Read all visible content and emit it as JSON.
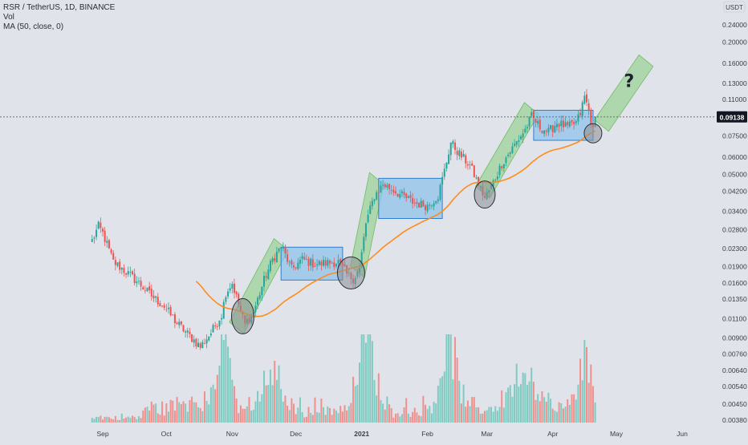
{
  "header": {
    "symbol_line": "RSR / TetherUS, 1D, BINANCE",
    "volume_label": "Vol",
    "ma_label": "MA (50, close, 0)"
  },
  "currency_label": "USDT",
  "question_mark": "?",
  "colors": {
    "up": "#26a69a",
    "down": "#ef5350",
    "vol_up": "#7ecbc1",
    "vol_down": "#f0908d",
    "ma": "#ff8c1a",
    "green_channel": "#9ed39a",
    "blue_box": "#8fc3ea",
    "circle": "#777a80"
  },
  "chart_data": {
    "type": "candlestick",
    "title": "",
    "scale": "log",
    "ylim": [
      0.0036,
      0.33
    ],
    "y_ticks": [
      "0.24000",
      "0.20000",
      "0.16000",
      "0.13000",
      "0.11000",
      "0.09138",
      "0.07500",
      "0.06000",
      "0.05000",
      "0.04200",
      "0.03400",
      "0.02800",
      "0.02300",
      "0.01900",
      "0.01600",
      "0.01350",
      "0.01100",
      "0.00900",
      "0.00760",
      "0.00640",
      "0.00540",
      "0.00450",
      "0.00380"
    ],
    "y_tick_values": [
      0.24,
      0.2,
      0.16,
      0.13,
      0.11,
      0.09138,
      0.075,
      0.06,
      0.05,
      0.042,
      0.034,
      0.028,
      0.023,
      0.019,
      0.016,
      0.0135,
      0.011,
      0.009,
      0.0076,
      0.0064,
      0.0054,
      0.0045,
      0.0038
    ],
    "last_price": 0.09138,
    "x_labels": [
      {
        "label": "Sep",
        "date": "2020-09-01"
      },
      {
        "label": "Oct",
        "date": "2020-10-01"
      },
      {
        "label": "Nov",
        "date": "2020-11-01"
      },
      {
        "label": "Dec",
        "date": "2020-12-01"
      },
      {
        "label": "2021",
        "date": "2021-01-01"
      },
      {
        "label": "Feb",
        "date": "2021-02-01"
      },
      {
        "label": "Mar",
        "date": "2021-03-01"
      },
      {
        "label": "Apr",
        "date": "2021-04-01"
      },
      {
        "label": "May",
        "date": "2021-05-01"
      },
      {
        "label": "Jun",
        "date": "2021-06-01"
      }
    ],
    "price_anchors": [
      [
        "2020-08-27",
        0.025
      ],
      [
        "2020-08-30",
        0.029
      ],
      [
        "2020-09-01",
        0.027
      ],
      [
        "2020-09-03",
        0.024
      ],
      [
        "2020-09-06",
        0.02
      ],
      [
        "2020-09-12",
        0.018
      ],
      [
        "2020-09-18",
        0.016
      ],
      [
        "2020-09-24",
        0.014
      ],
      [
        "2020-09-30",
        0.0125
      ],
      [
        "2020-10-06",
        0.0105
      ],
      [
        "2020-10-12",
        0.0092
      ],
      [
        "2020-10-17",
        0.0082
      ],
      [
        "2020-10-22",
        0.0095
      ],
      [
        "2020-10-27",
        0.0115
      ],
      [
        "2020-10-29",
        0.0145
      ],
      [
        "2020-11-01",
        0.016
      ],
      [
        "2020-11-04",
        0.0128
      ],
      [
        "2020-11-07",
        0.0104
      ],
      [
        "2020-11-11",
        0.0118
      ],
      [
        "2020-11-16",
        0.0165
      ],
      [
        "2020-11-20",
        0.0205
      ],
      [
        "2020-11-24",
        0.0235
      ],
      [
        "2020-11-26",
        0.0215
      ],
      [
        "2020-11-29",
        0.0185
      ],
      [
        "2020-12-04",
        0.0205
      ],
      [
        "2020-12-10",
        0.0195
      ],
      [
        "2020-12-16",
        0.0198
      ],
      [
        "2020-12-21",
        0.02
      ],
      [
        "2020-12-25",
        0.0175
      ],
      [
        "2020-12-28",
        0.0168
      ],
      [
        "2020-12-31",
        0.0185
      ],
      [
        "2021-01-03",
        0.03
      ],
      [
        "2021-01-07",
        0.04
      ],
      [
        "2021-01-11",
        0.045
      ],
      [
        "2021-01-15",
        0.043
      ],
      [
        "2021-01-20",
        0.04
      ],
      [
        "2021-01-26",
        0.037
      ],
      [
        "2021-02-01",
        0.036
      ],
      [
        "2021-02-06",
        0.04
      ],
      [
        "2021-02-09",
        0.052
      ],
      [
        "2021-02-12",
        0.07
      ],
      [
        "2021-02-16",
        0.062
      ],
      [
        "2021-02-21",
        0.055
      ],
      [
        "2021-02-25",
        0.045
      ],
      [
        "2021-02-28",
        0.039
      ],
      [
        "2021-03-03",
        0.044
      ],
      [
        "2021-03-08",
        0.056
      ],
      [
        "2021-03-14",
        0.068
      ],
      [
        "2021-03-19",
        0.08
      ],
      [
        "2021-03-22",
        0.092
      ],
      [
        "2021-03-26",
        0.082
      ],
      [
        "2021-03-30",
        0.078
      ],
      [
        "2021-04-03",
        0.086
      ],
      [
        "2021-04-08",
        0.082
      ],
      [
        "2021-04-12",
        0.086
      ],
      [
        "2021-04-14",
        0.095
      ],
      [
        "2021-04-16",
        0.113
      ],
      [
        "2021-04-18",
        0.098
      ],
      [
        "2021-04-20",
        0.079
      ],
      [
        "2021-04-21",
        0.0914
      ]
    ],
    "ma_label": "MA (50, close, 0)",
    "annotations": {
      "green_channels": [
        {
          "start": [
            "2020-11-03",
            0.01
          ],
          "end": [
            "2020-11-24",
            0.024
          ],
          "height": 0.0265
        },
        {
          "start": [
            "2020-12-30",
            0.018
          ],
          "end": [
            "2021-01-08",
            0.048
          ],
          "height": 0.0235
        },
        {
          "start": [
            "2021-02-27",
            0.0415
          ],
          "end": [
            "2021-03-22",
            0.1
          ],
          "height": 0.0215
        },
        {
          "start": [
            "2021-04-24",
            0.0835
          ],
          "end": [
            "2021-05-15",
            0.165
          ],
          "height": 0.0255
        }
      ],
      "blue_boxes": [
        {
          "x0": "2020-11-24",
          "x1": "2020-12-23",
          "y0": 0.0233,
          "y1": 0.0165
        },
        {
          "x0": "2021-01-09",
          "x1": "2021-02-08",
          "y0": 0.048,
          "y1": 0.0315
        },
        {
          "x0": "2021-03-23",
          "x1": "2021-04-20",
          "y0": 0.098,
          "y1": 0.0715
        }
      ],
      "circles": [
        {
          "date": "2020-11-06",
          "price": 0.0113
        },
        {
          "date": "2020-12-27",
          "price": 0.0178
        },
        {
          "date": "2021-02-28",
          "price": 0.0405
        },
        {
          "date": "2021-04-20",
          "price": 0.077
        }
      ],
      "question_mark_position": [
        "2021-05-07",
        0.125
      ]
    }
  }
}
